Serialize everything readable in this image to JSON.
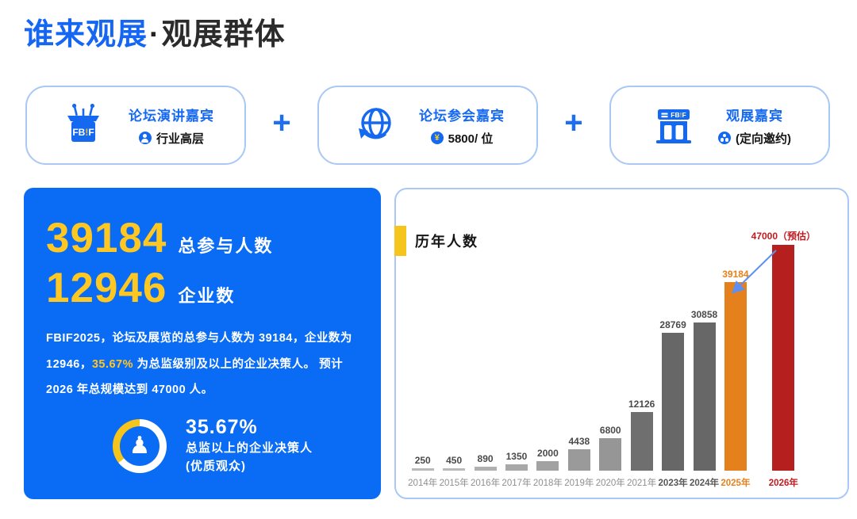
{
  "page": {
    "title_highlight": "谁来观展",
    "title_separator": "·",
    "title_rest": "观展群体",
    "plus": "+"
  },
  "cards": [
    {
      "icon": "podium-fbif-icon",
      "icon_text": "FB!F",
      "title": "论坛演讲嘉宾",
      "badge_icon": "person-badge-icon",
      "subtitle": "行业高层"
    },
    {
      "icon": "globe-arrow-icon",
      "title": "论坛参会嘉宾",
      "badge_icon": "yen-badge-icon",
      "badge_glyph": "¥",
      "subtitle": "5800/ 位"
    },
    {
      "icon": "storefront-fbif-icon",
      "icon_text": "FB!F",
      "title": "观展嘉宾",
      "badge_icon": "group-badge-icon",
      "subtitle": "(定向邀约)"
    }
  ],
  "stats_panel": {
    "stat1_value": "39184",
    "stat1_label": "总参与人数",
    "stat2_value": "12946",
    "stat2_label": "企业数",
    "description_part1": "FBIF2025，论坛及展览的总参与人数为 39184，企业数为 12946，",
    "description_highlight": "35.67%",
    "description_part2": " 为总监级别及以上的企业决策人。 预计 2026 年总规模达到 47000 人。",
    "donut": {
      "percent": 35.67,
      "percent_label": "35.67%",
      "line1": "总监以上的企业决策人",
      "line2": "(优质观众)",
      "pawn_glyph": "♟"
    }
  },
  "chart_data": {
    "type": "bar",
    "title": "历年人数",
    "categories": [
      "2014年",
      "2015年",
      "2016年",
      "2017年",
      "2018年",
      "2019年",
      "2020年",
      "2021年",
      "2023年",
      "2024年",
      "2025年",
      "2026年"
    ],
    "values": [
      250,
      450,
      890,
      1350,
      2000,
      4438,
      6800,
      12126,
      28769,
      30858,
      39184,
      47000
    ],
    "value_labels": [
      "250",
      "450",
      "890",
      "1350",
      "2000",
      "4438",
      "6800",
      "12126",
      "28769",
      "30858",
      "39184",
      "47000（预估）"
    ],
    "ylim": [
      0,
      47000
    ],
    "xlabel": "",
    "ylabel": "",
    "grid": false,
    "legend": "none",
    "note": "2026 value is a forecast (预估); arrow annotation points from 2026 bar down to 2025 bar",
    "bar_colors": [
      "#b9b9b9",
      "#b9b9b9",
      "#b0b0b0",
      "#a8a8a8",
      "#a2a2a2",
      "#9a9a9a",
      "#969696",
      "#6f6f6f",
      "#676767",
      "#676767",
      "#e5811d",
      "#b5201f"
    ],
    "value_label_colors": [
      "#4a4a4a",
      "#4a4a4a",
      "#4a4a4a",
      "#4a4a4a",
      "#4a4a4a",
      "#4a4a4a",
      "#4a4a4a",
      "#4a4a4a",
      "#4a4a4a",
      "#4a4a4a",
      "#e5811d",
      "#c21a1f"
    ],
    "year_label_colors": [
      "#8f8f8f",
      "#8f8f8f",
      "#8f8f8f",
      "#8f8f8f",
      "#8f8f8f",
      "#8f8f8f",
      "#8f8f8f",
      "#8f8f8f",
      "#575757",
      "#575757",
      "#e5811d",
      "#c21a1f"
    ]
  },
  "colors": {
    "brand_blue": "#1569f0",
    "panel_blue": "#0a6cf4",
    "card_border": "#a9c8f6",
    "accent_yellow": "#f6c51d",
    "stat_yellow": "#ffc722",
    "bar_orange": "#e5811d",
    "bar_red": "#b5201f",
    "arrow_blue": "#5f8ff0"
  }
}
